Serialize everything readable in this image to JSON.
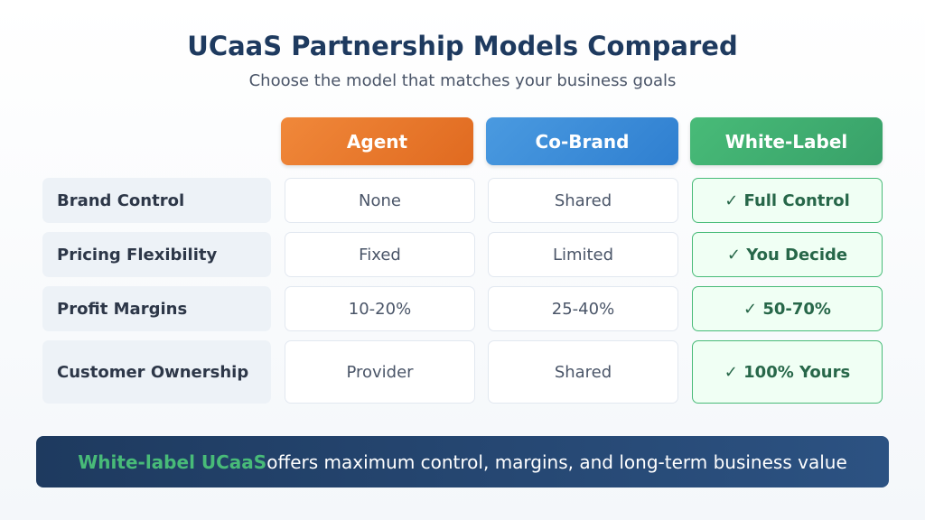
{
  "header": {
    "title": "UCaaS Partnership Models Compared",
    "subtitle": "Choose the model that matches your business goals"
  },
  "table": {
    "columns": [
      "Agent",
      "Co-Brand",
      "White-Label"
    ],
    "rows": [
      {
        "label": "Brand Control",
        "cells": [
          "None",
          "Shared",
          "✓ Full Control"
        ]
      },
      {
        "label": "Pricing Flexibility",
        "cells": [
          "Fixed",
          "Limited",
          "✓ You Decide"
        ]
      },
      {
        "label": "Profit Margins",
        "cells": [
          "10-20%",
          "25-40%",
          "✓ 50-70%"
        ]
      },
      {
        "label": "Customer Ownership",
        "cells": [
          "Provider",
          "Shared",
          "✓ 100% Yours"
        ]
      }
    ]
  },
  "footer": {
    "highlight": "White-label UCaaS",
    "text": "offers maximum control, margins, and long-term business value"
  }
}
